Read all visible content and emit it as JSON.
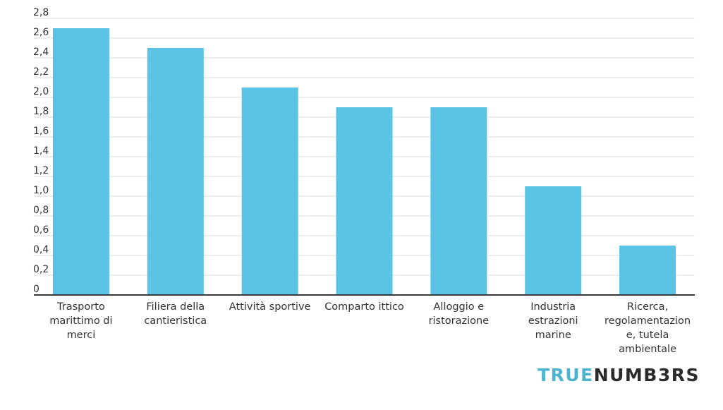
{
  "chart_data": {
    "type": "bar",
    "categories": [
      "Trasporto marittimo di merci",
      "Filiera della cantieristica",
      "Attività sportive",
      "Comparto ittico",
      "Alloggio e ristorazione",
      "Industria estrazioni marine",
      "Ricerca, regolamentazione, tutela ambientale"
    ],
    "category_lines": [
      [
        "Trasporto",
        "marittimo di",
        "merci"
      ],
      [
        "Filiera della",
        "cantieristica"
      ],
      [
        "Attività sportive"
      ],
      [
        "Comparto ittico"
      ],
      [
        "Alloggio e",
        "ristorazione"
      ],
      [
        "Industria",
        "estrazioni",
        "marine"
      ],
      [
        "Ricerca,",
        "regolamentazion",
        "e, tutela",
        "ambientale"
      ]
    ],
    "values": [
      2.7,
      2.5,
      2.1,
      1.9,
      1.9,
      1.1,
      0.5
    ],
    "ylim": [
      0,
      2.8
    ],
    "yticks": [
      "0",
      "0,2",
      "0,4",
      "0,6",
      "0,8",
      "1,0",
      "1,2",
      "1,4",
      "1,6",
      "1,8",
      "2,0",
      "2,2",
      "2,4",
      "2,6",
      "2,8"
    ],
    "grid": true,
    "bar_color": "#5bc4e5",
    "title": "",
    "xlabel": "",
    "ylabel": ""
  },
  "brand": {
    "part1": "TRUE",
    "part2": "NUMB3RS",
    "color_accent": "#4bb3cd",
    "color_dark": "#2b2b2b"
  }
}
